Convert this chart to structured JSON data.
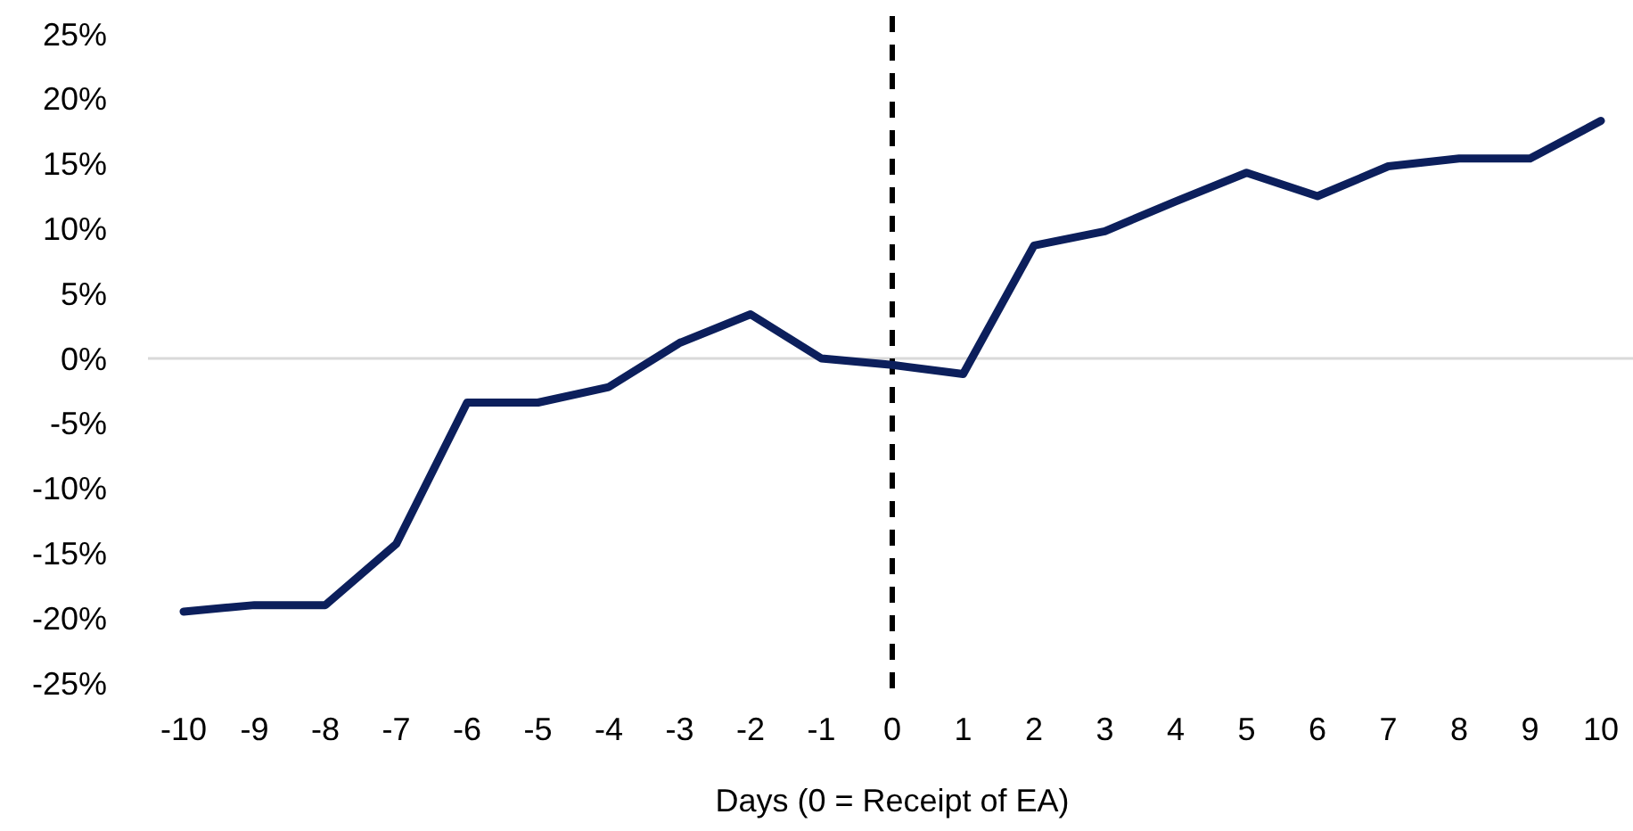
{
  "chart_data": {
    "type": "line",
    "xlabel": "Days (0 = Receipt of EA)",
    "categories": [
      "-10",
      "-9",
      "-8",
      "-7",
      "-6",
      "-5",
      "-4",
      "-3",
      "-2",
      "-1",
      "0",
      "1",
      "2",
      "3",
      "4",
      "5",
      "6",
      "7",
      "8",
      "9",
      "10"
    ],
    "series": [
      {
        "color": "#0c1f5c",
        "values": [
          -19.5,
          -19,
          -19,
          -14.3,
          -3.4,
          -3.4,
          -2.2,
          1.2,
          3.4,
          0,
          -0.5,
          -1.2,
          8.7,
          9.8,
          12.1,
          14.3,
          12.5,
          14.8,
          15.4,
          15.4,
          18.3
        ]
      }
    ],
    "ylim": [
      -25,
      25
    ],
    "yticks": [
      {
        "value": -25,
        "label": "-25%"
      },
      {
        "value": -20,
        "label": "-20%"
      },
      {
        "value": -15,
        "label": "-15%"
      },
      {
        "value": -10,
        "label": "-10%"
      },
      {
        "value": -5,
        "label": "-5%"
      },
      {
        "value": 0,
        "label": "0%"
      },
      {
        "value": 5,
        "label": "5%"
      },
      {
        "value": 10,
        "label": "10%"
      },
      {
        "value": 15,
        "label": "15%"
      },
      {
        "value": 20,
        "label": "20%"
      },
      {
        "value": 25,
        "label": "25%"
      }
    ],
    "ref_lines": [
      {
        "axis": "x",
        "value": "0",
        "color": "#000000",
        "line_style": "dashed"
      }
    ],
    "grid": false,
    "marker": "none",
    "line_style": "solid"
  }
}
